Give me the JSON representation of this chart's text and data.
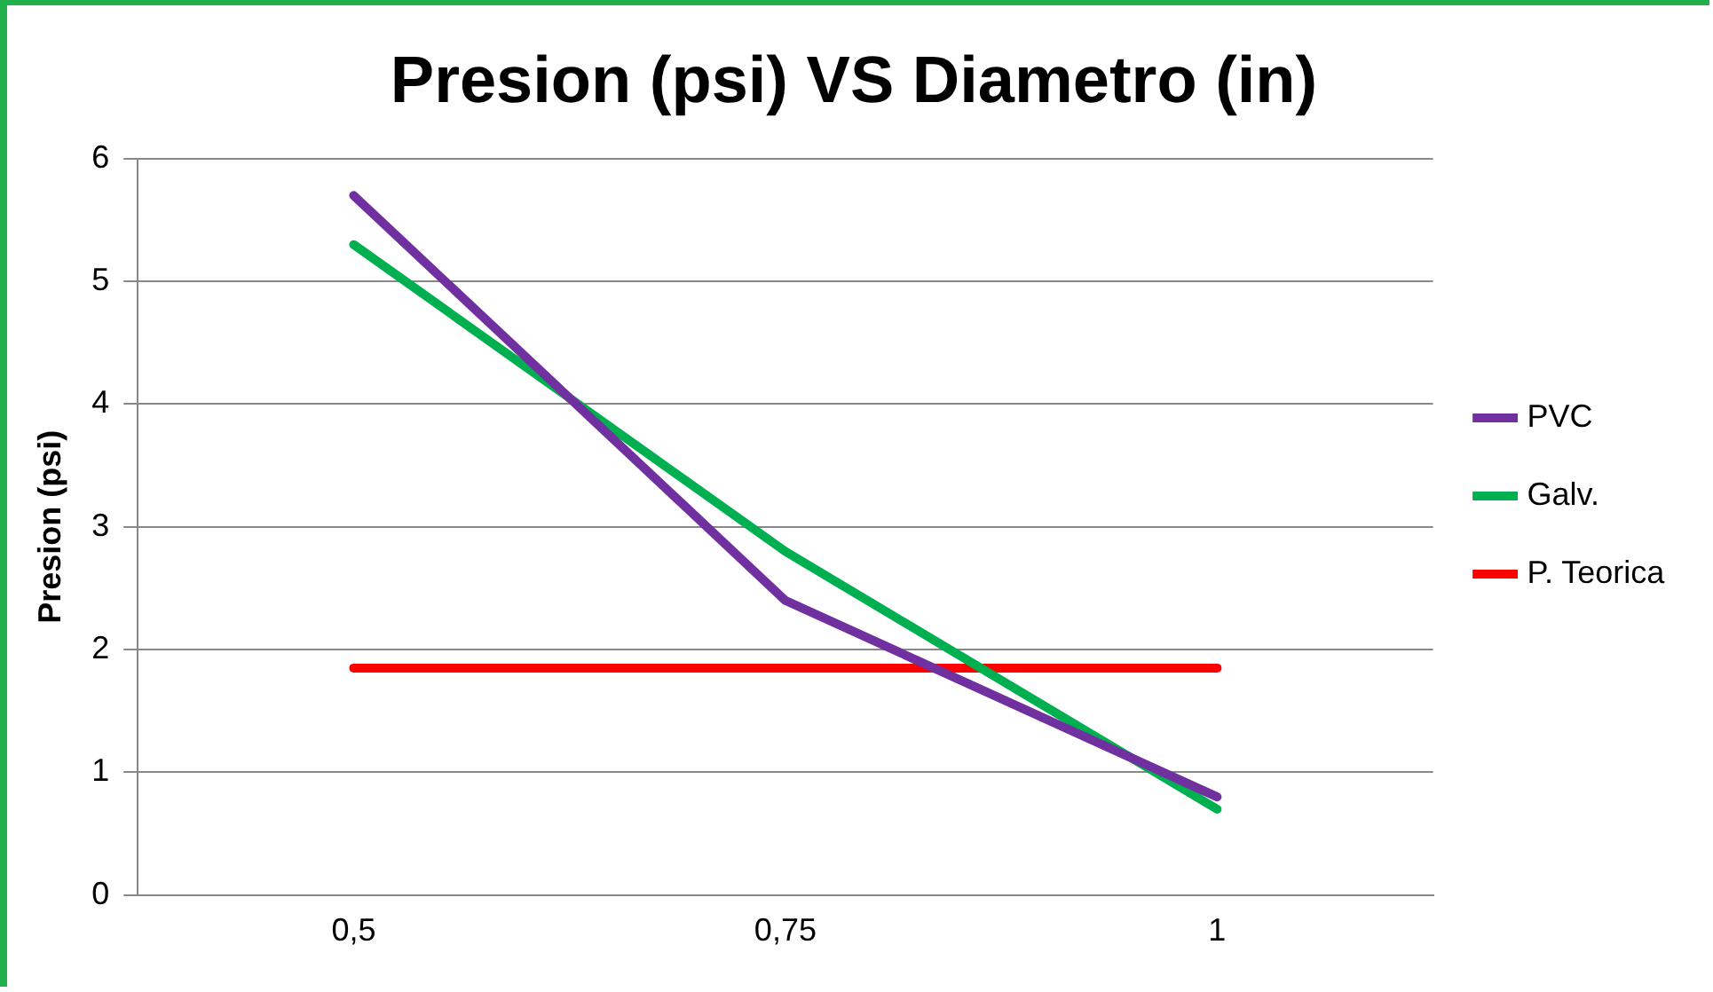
{
  "chart_data": {
    "type": "line",
    "title": "Presion (psi) VS Diametro (in)",
    "ylabel": "Presion (psi)",
    "categories": [
      "0,5",
      "0,75",
      "1"
    ],
    "series": [
      {
        "name": "PVC",
        "color": "#7030a0",
        "values": [
          5.7,
          2.4,
          0.8
        ]
      },
      {
        "name": "Galv.",
        "color": "#00b050",
        "values": [
          5.3,
          2.8,
          0.7
        ]
      },
      {
        "name": "P. Teorica",
        "color": "#ff0000",
        "values": [
          1.85,
          1.85,
          1.85
        ]
      }
    ],
    "ylim": [
      0,
      6
    ],
    "yticks": [
      0,
      1,
      2,
      3,
      4,
      5,
      6
    ],
    "grid": "y",
    "legend": "right",
    "marker": "none"
  }
}
